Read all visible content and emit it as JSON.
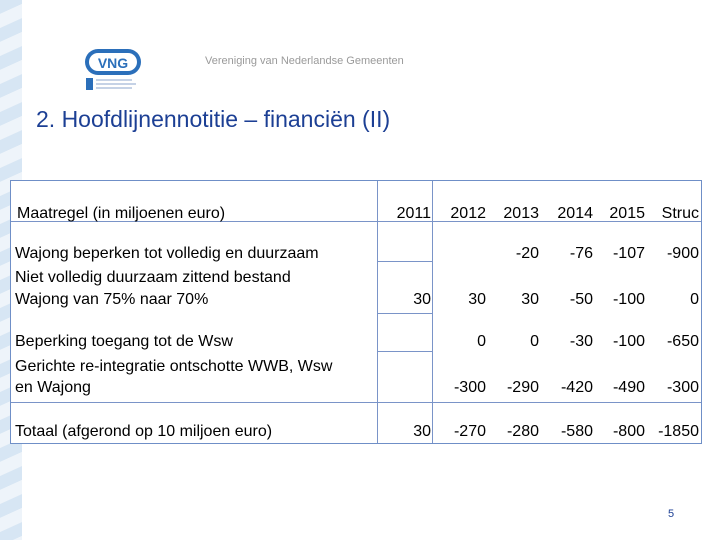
{
  "organization": "Vereniging van Nederlandse Gemeenten",
  "logo": {
    "text": "VNG",
    "subtext": "Vereniging van Nederlandse Gemeenten"
  },
  "title": "2. Hoofdlijnennotitie – financiën (II)",
  "table": {
    "header": {
      "label": "Maatregel (in miljoenen euro)",
      "columns": [
        "2011",
        "2012",
        "2013",
        "2014",
        "2015",
        "Struc"
      ]
    },
    "rows": [
      {
        "label": "Wajong beperken tot volledig en duurzaam",
        "values": [
          "",
          "",
          "-20",
          "-76",
          "-107",
          "-900"
        ]
      },
      {
        "label_lines": [
          "Niet volledig duurzaam zittend bestand",
          "Wajong van 75% naar 70%"
        ],
        "values": [
          "30",
          "30",
          "30",
          "-50",
          "-100",
          "0"
        ]
      },
      {
        "label": "Beperking toegang tot de Wsw",
        "values": [
          "",
          "0",
          "0",
          "-30",
          "-100",
          "-650"
        ]
      },
      {
        "label_lines": [
          "Gerichte re-integratie ontschotte WWB, Wsw",
          "en Wajong"
        ],
        "values": [
          "",
          "-300",
          "-290",
          "-420",
          "-490",
          "-300"
        ]
      }
    ],
    "total": {
      "label": "Totaal (afgerond op 10 miljoen euro)",
      "values": [
        "30",
        "-270",
        "-280",
        "-580",
        "-800",
        "-1850"
      ]
    }
  },
  "page_number": "5",
  "colors": {
    "title": "#1c3f94",
    "logo_blue": "#2b6fba",
    "table_border": "#6f8fc7",
    "org_text": "#9a9a9a"
  }
}
